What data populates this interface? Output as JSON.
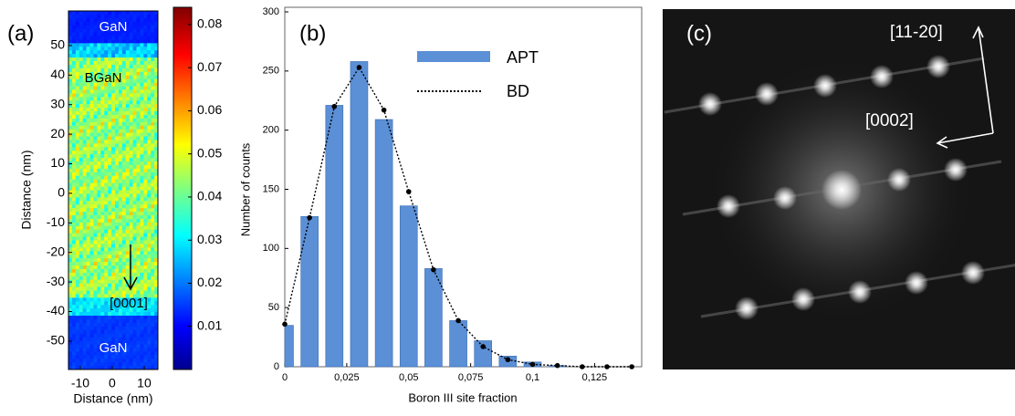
{
  "chart_data": [
    {
      "type": "heatmap",
      "panel_label": "(a)",
      "xlabel": "Distance (nm)",
      "ylabel": "Distance (nm)",
      "xlim": [
        -13.7,
        14.3
      ],
      "xticks": [
        -10,
        0,
        10
      ],
      "ylim": [
        -59.6,
        61.7
      ],
      "yticks": [
        50,
        40,
        30,
        20,
        10,
        0,
        -10,
        -20,
        -30,
        -40,
        -50
      ],
      "colormap": "jet",
      "colorbar_lim": [
        0,
        0.084
      ],
      "colorbar_ticks": [
        0.01,
        0.02,
        0.03,
        0.04,
        0.05,
        0.06,
        0.07,
        0.08
      ],
      "annotations": [
        "GaN",
        "BGaN",
        "[0001]",
        "GaN"
      ]
    },
    {
      "type": "bar",
      "panel_label": "(b)",
      "xlabel": "Boron III site fraction",
      "ylabel": "Number of counts",
      "x": [
        0,
        0.01,
        0.02,
        0.03,
        0.04,
        0.05,
        0.06,
        0.07,
        0.08,
        0.09,
        0.1,
        0.11,
        0.12,
        0.13,
        0.14
      ],
      "series": [
        {
          "name": "APT",
          "color": "#5b8fd6",
          "values": [
            35,
            127,
            221,
            258,
            209,
            136,
            83,
            39,
            22,
            9,
            4,
            1,
            0,
            0,
            0
          ]
        },
        {
          "name": "BD",
          "color": "#000000",
          "values": [
            36,
            126,
            220,
            253,
            217,
            148,
            82,
            39,
            17,
            6,
            2,
            1,
            0,
            0,
            0
          ]
        }
      ],
      "xlim": [
        0,
        0.144
      ],
      "ylim": [
        0,
        300
      ],
      "xticks": [
        0,
        {
          "value": 0.025,
          "label": "0,025"
        },
        {
          "value": 0.05,
          "label": "0,05"
        },
        {
          "value": 0.075,
          "label": "0,075"
        },
        {
          "value": 0.1,
          "label": "0,1"
        },
        {
          "value": 0.125,
          "label": "0,125"
        }
      ],
      "yticks": [
        0,
        50,
        100,
        150,
        200,
        250,
        300
      ]
    },
    {
      "type": "image",
      "panel_label": "(c)",
      "annotations": [
        "[11-20]",
        "[0002]"
      ]
    }
  ]
}
